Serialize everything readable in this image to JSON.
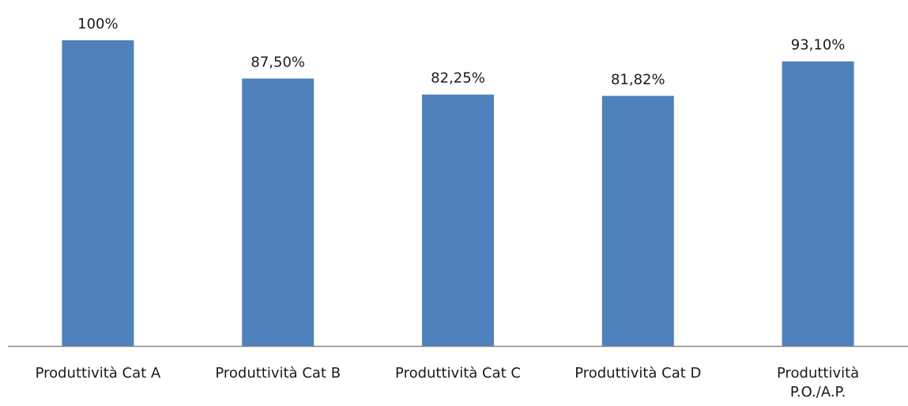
{
  "chart_data": {
    "type": "bar",
    "categories": [
      "Produttività Cat A",
      "Produttività Cat B",
      "Produttività Cat C",
      "Produttività Cat D",
      [
        "Produttività",
        "P.O./A.P."
      ]
    ],
    "values": [
      100,
      87.5,
      82.25,
      81.82,
      93.1
    ],
    "data_labels": [
      "100%",
      "87,50%",
      "82,25%",
      "81,82%",
      "93,10%"
    ],
    "title": "",
    "xlabel": "",
    "ylabel": "",
    "ylim": [
      0,
      100
    ],
    "grid": false,
    "legend": "none",
    "bar_color": "#4F81BD",
    "axis_color": "#888888"
  }
}
